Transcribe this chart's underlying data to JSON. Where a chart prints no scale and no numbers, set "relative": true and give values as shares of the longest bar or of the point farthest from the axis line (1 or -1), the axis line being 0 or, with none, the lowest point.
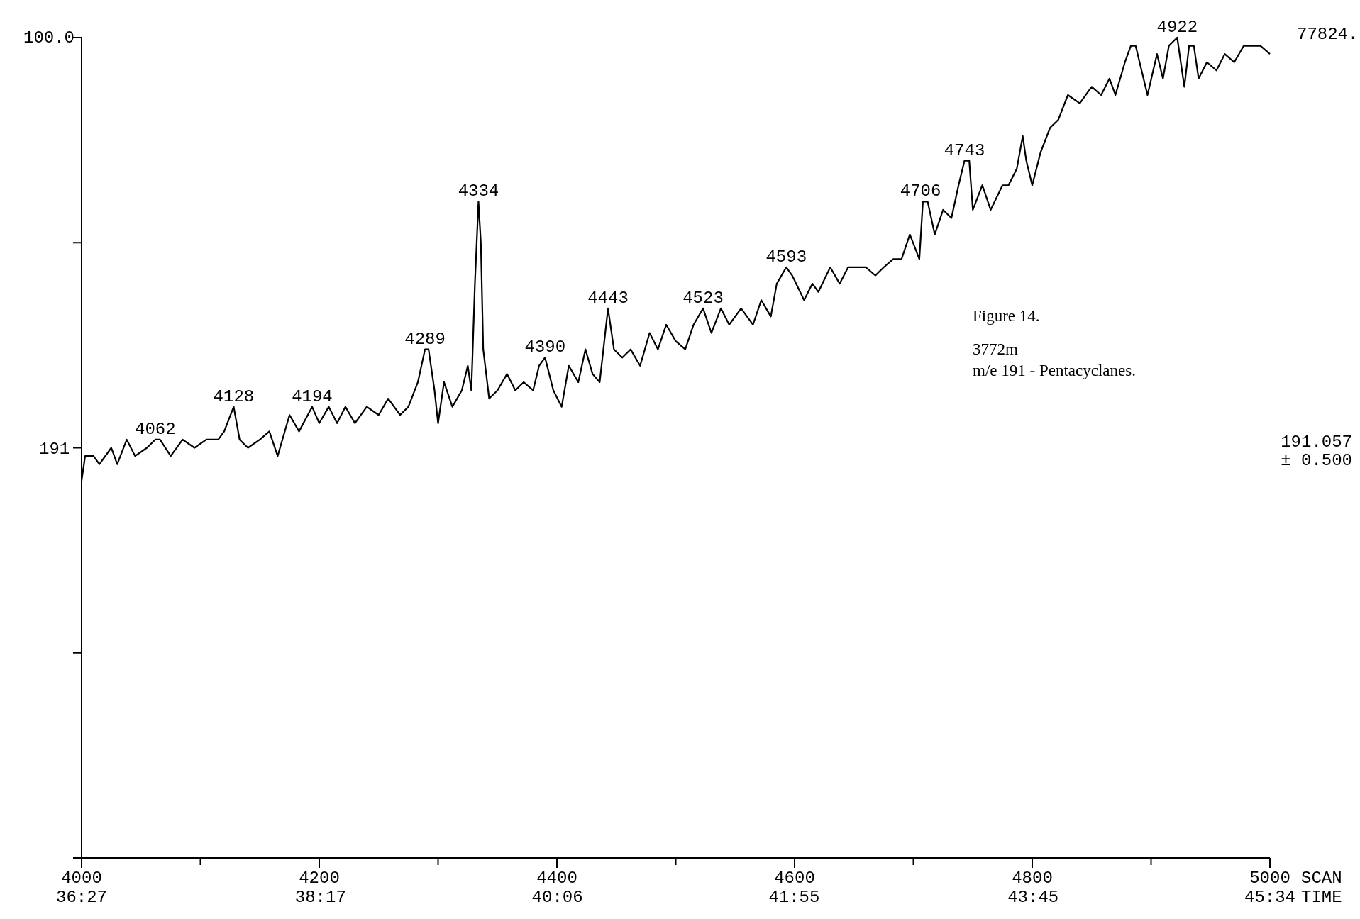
{
  "chart_data": {
    "type": "line",
    "relative": true,
    "xlabel": "SCAN",
    "x2label": "TIME",
    "x2lim": [
      36.45,
      45.5667
    ],
    "x2ticks": [
      {
        "value": 36.45,
        "label": "36:27"
      },
      {
        "value": 38.2833,
        "label": "38:17"
      },
      {
        "value": 40.1,
        "label": "40:06"
      },
      {
        "value": 41.9167,
        "label": "41:55"
      },
      {
        "value": 43.75,
        "label": "43:45"
      },
      {
        "value": 45.5667,
        "label": "45:34"
      }
    ],
    "color": "#000000",
    "xlim": [
      4000,
      5000
    ],
    "xticks": [
      4000,
      {
        "value": 4100,
        "label": null
      },
      4200,
      {
        "value": 4300,
        "label": null
      },
      4400,
      {
        "value": 4500,
        "label": null
      },
      4600,
      {
        "value": 4700,
        "label": null
      },
      4800,
      {
        "value": 4900,
        "label": null
      },
      5000
    ],
    "x": [
      4000,
      4003,
      4010,
      4015,
      4025,
      4030,
      4038,
      4045,
      4055,
      4062,
      4066,
      4075,
      4085,
      4095,
      4105,
      4115,
      4120,
      4128,
      4133,
      4140,
      4150,
      4158,
      4165,
      4175,
      4183,
      4194,
      4200,
      4208,
      4215,
      4222,
      4230,
      4240,
      4250,
      4258,
      4268,
      4275,
      4283,
      4289,
      4292,
      4297,
      4300,
      4305,
      4312,
      4320,
      4325,
      4328,
      4331,
      4334,
      4336,
      4338,
      4343,
      4350,
      4358,
      4365,
      4372,
      4380,
      4385,
      4390,
      4397,
      4404,
      4410,
      4418,
      4424,
      4430,
      4436,
      4443,
      4448,
      4455,
      4462,
      4470,
      4478,
      4485,
      4492,
      4500,
      4508,
      4515,
      4523,
      4530,
      4538,
      4545,
      4555,
      4565,
      4572,
      4580,
      4585,
      4593,
      4598,
      4608,
      4615,
      4620,
      4630,
      4638,
      4645,
      4652,
      4660,
      4668,
      4675,
      4683,
      4690,
      4697,
      4705,
      4708,
      4712,
      4718,
      4725,
      4732,
      4738,
      4743,
      4747,
      4750,
      4758,
      4765,
      4775,
      4780,
      4787,
      4792,
      4795,
      4800,
      4807,
      4815,
      4822,
      4830,
      4840,
      4850,
      4858,
      4865,
      4870,
      4878,
      4883,
      4887,
      4892,
      4897,
      4905,
      4910,
      4915,
      4922,
      4928,
      4932,
      4936,
      4940,
      4947,
      4955,
      4962,
      4970,
      4978,
      4986,
      4992,
      5000
    ],
    "values": [
      0.46,
      0.49,
      0.49,
      0.48,
      0.5,
      0.48,
      0.51,
      0.49,
      0.5,
      0.51,
      0.51,
      0.49,
      0.51,
      0.5,
      0.51,
      0.51,
      0.52,
      0.55,
      0.51,
      0.5,
      0.51,
      0.52,
      0.49,
      0.54,
      0.52,
      0.55,
      0.53,
      0.55,
      0.53,
      0.55,
      0.53,
      0.55,
      0.54,
      0.56,
      0.54,
      0.55,
      0.58,
      0.62,
      0.62,
      0.57,
      0.53,
      0.58,
      0.55,
      0.57,
      0.6,
      0.57,
      0.7,
      0.8,
      0.75,
      0.62,
      0.56,
      0.57,
      0.59,
      0.57,
      0.58,
      0.57,
      0.6,
      0.61,
      0.57,
      0.55,
      0.6,
      0.58,
      0.62,
      0.59,
      0.58,
      0.67,
      0.62,
      0.61,
      0.62,
      0.6,
      0.64,
      0.62,
      0.65,
      0.63,
      0.62,
      0.65,
      0.67,
      0.64,
      0.67,
      0.65,
      0.67,
      0.65,
      0.68,
      0.66,
      0.7,
      0.72,
      0.71,
      0.68,
      0.7,
      0.69,
      0.72,
      0.7,
      0.72,
      0.72,
      0.72,
      0.71,
      0.72,
      0.73,
      0.73,
      0.76,
      0.73,
      0.8,
      0.8,
      0.76,
      0.79,
      0.78,
      0.82,
      0.85,
      0.85,
      0.79,
      0.82,
      0.79,
      0.82,
      0.82,
      0.84,
      0.88,
      0.85,
      0.82,
      0.86,
      0.89,
      0.9,
      0.93,
      0.92,
      0.94,
      0.93,
      0.95,
      0.93,
      0.97,
      0.99,
      0.99,
      0.96,
      0.93,
      0.98,
      0.95,
      0.99,
      1,
      0.94,
      0.99,
      0.99,
      0.95,
      0.97,
      0.96,
      0.98,
      0.97,
      0.99,
      0.99,
      0.99,
      0.98
    ],
    "annotations": [
      "100.0",
      "191",
      "77824.",
      "191.057",
      "± 0.500",
      "Figure 14.",
      "3772m",
      "m/e 191 - Pentacyclanes.",
      {
        "text": "4062",
        "x": 4062,
        "y": 0.51
      },
      {
        "text": "4128",
        "x": 4128,
        "y": 0.55
      },
      {
        "text": "4194",
        "x": 4194,
        "y": 0.55
      },
      {
        "text": "4289",
        "x": 4289,
        "y": 0.62
      },
      {
        "text": "4334",
        "x": 4334,
        "y": 0.8
      },
      {
        "text": "4390",
        "x": 4390,
        "y": 0.61
      },
      {
        "text": "4443",
        "x": 4443,
        "y": 0.67
      },
      {
        "text": "4523",
        "x": 4523,
        "y": 0.67
      },
      {
        "text": "4593",
        "x": 4593,
        "y": 0.72
      },
      {
        "text": "4706",
        "x": 4706,
        "y": 0.8
      },
      {
        "text": "4743",
        "x": 4743,
        "y": 0.85
      },
      {
        "text": "4922",
        "x": 4922,
        "y": 1
      }
    ]
  }
}
